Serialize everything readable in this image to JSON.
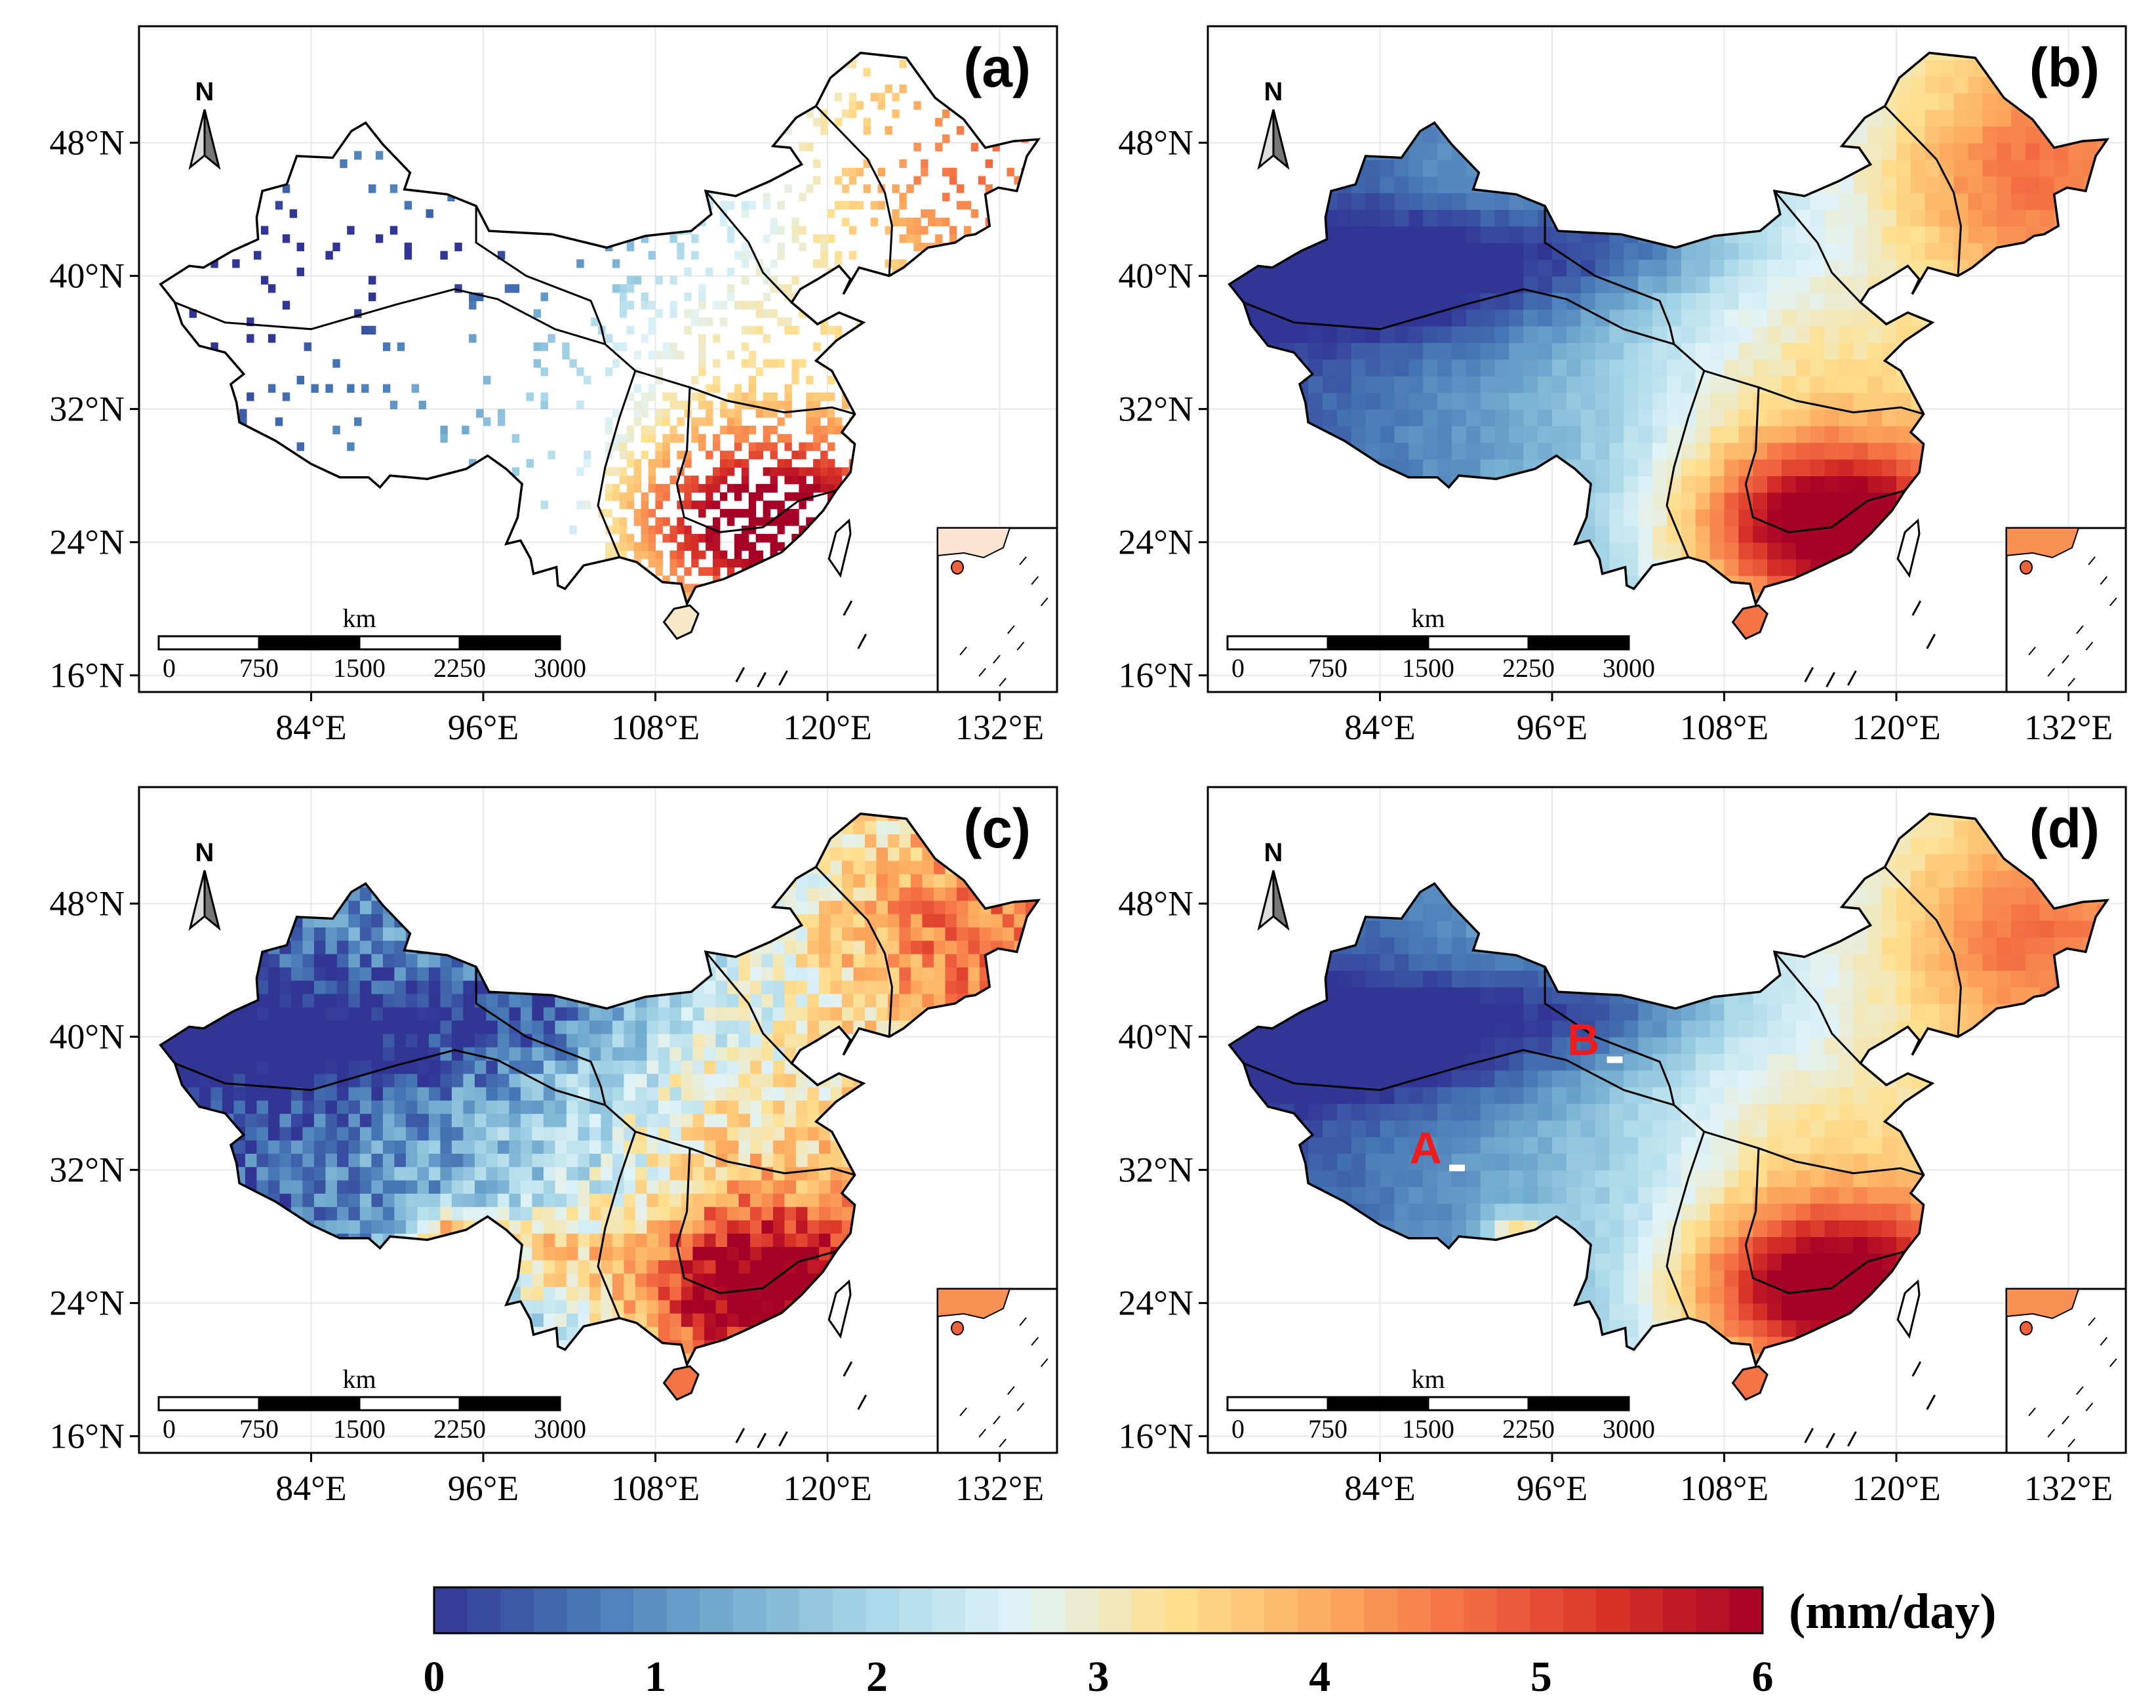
{
  "figure": {
    "lat_labels": [
      "48°N",
      "40°N",
      "32°N",
      "24°N",
      "16°N"
    ],
    "lon_labels": [
      "84°E",
      "96°E",
      "108°E",
      "120°E",
      "132°E"
    ],
    "lat_values": [
      48,
      40,
      32,
      24,
      16
    ],
    "lon_values": [
      84,
      96,
      108,
      120,
      132
    ],
    "north_label": "N",
    "scale_bar": {
      "unit": "km",
      "ticks": [
        "0",
        "750",
        "1500",
        "2250",
        "3000"
      ]
    }
  },
  "panels": [
    {
      "id": "a",
      "label": "(a)",
      "variant": "observed-sparse",
      "markers": []
    },
    {
      "id": "b",
      "label": "(b)",
      "variant": "smooth",
      "markers": []
    },
    {
      "id": "c",
      "label": "(c)",
      "variant": "noisy",
      "markers": []
    },
    {
      "id": "d",
      "label": "(d)",
      "variant": "smooth-alt",
      "markers": [
        {
          "text": "A",
          "lon": 88,
          "lat": 32
        },
        {
          "text": "B",
          "lon": 99,
          "lat": 38.5
        }
      ]
    }
  ],
  "colorbar": {
    "unit_label": "(mm/day)",
    "min": 0,
    "max": 6,
    "tick_labels": [
      "0",
      "1",
      "2",
      "3",
      "4",
      "5",
      "6"
    ],
    "colors": [
      "#313695",
      "#4575b4",
      "#74add1",
      "#abd9e9",
      "#e0f3f8",
      "#fee090",
      "#fdae61",
      "#f46d43",
      "#d73027",
      "#a50026"
    ]
  }
}
